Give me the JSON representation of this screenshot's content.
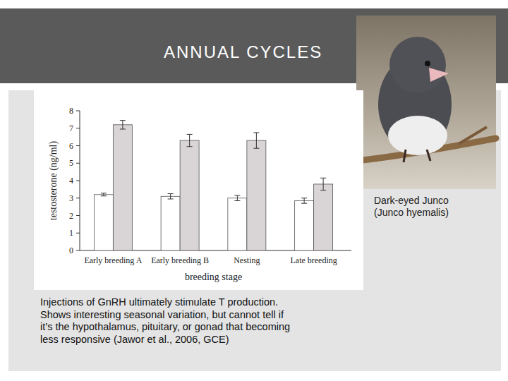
{
  "slide": {
    "title": "ANNUAL CYCLES",
    "caption": [
      "Dark-eyed Junco",
      "(Junco hyemalis)"
    ],
    "note": [
      "Injections of GnRH ultimately stimulate T production.",
      "Shows interesting seasonal variation, but cannot tell if",
      "it’s the hypothalamus, pituitary, or gonad that becoming",
      "less responsive (Jawor et al., 2006, GCE)"
    ]
  },
  "chart_data": {
    "type": "bar",
    "x_label": "breeding stage",
    "y_label": "testosterone (ng/ml)",
    "categories": [
      "Early breeding A",
      "Early breeding B",
      "Nesting",
      "Late breeding"
    ],
    "series": [
      {
        "color": "#ffffff",
        "values": [
          3.2,
          3.1,
          3.0,
          2.85
        ],
        "errors": [
          0.08,
          0.15,
          0.15,
          0.15
        ]
      },
      {
        "color": "#d9d4d6",
        "values": [
          7.2,
          6.3,
          6.3,
          3.8
        ],
        "errors": [
          0.25,
          0.35,
          0.45,
          0.35
        ]
      }
    ],
    "ylim": [
      0,
      8
    ],
    "yticks": [
      0,
      1,
      2,
      3,
      4,
      5,
      6,
      7,
      8
    ],
    "grid": false
  }
}
